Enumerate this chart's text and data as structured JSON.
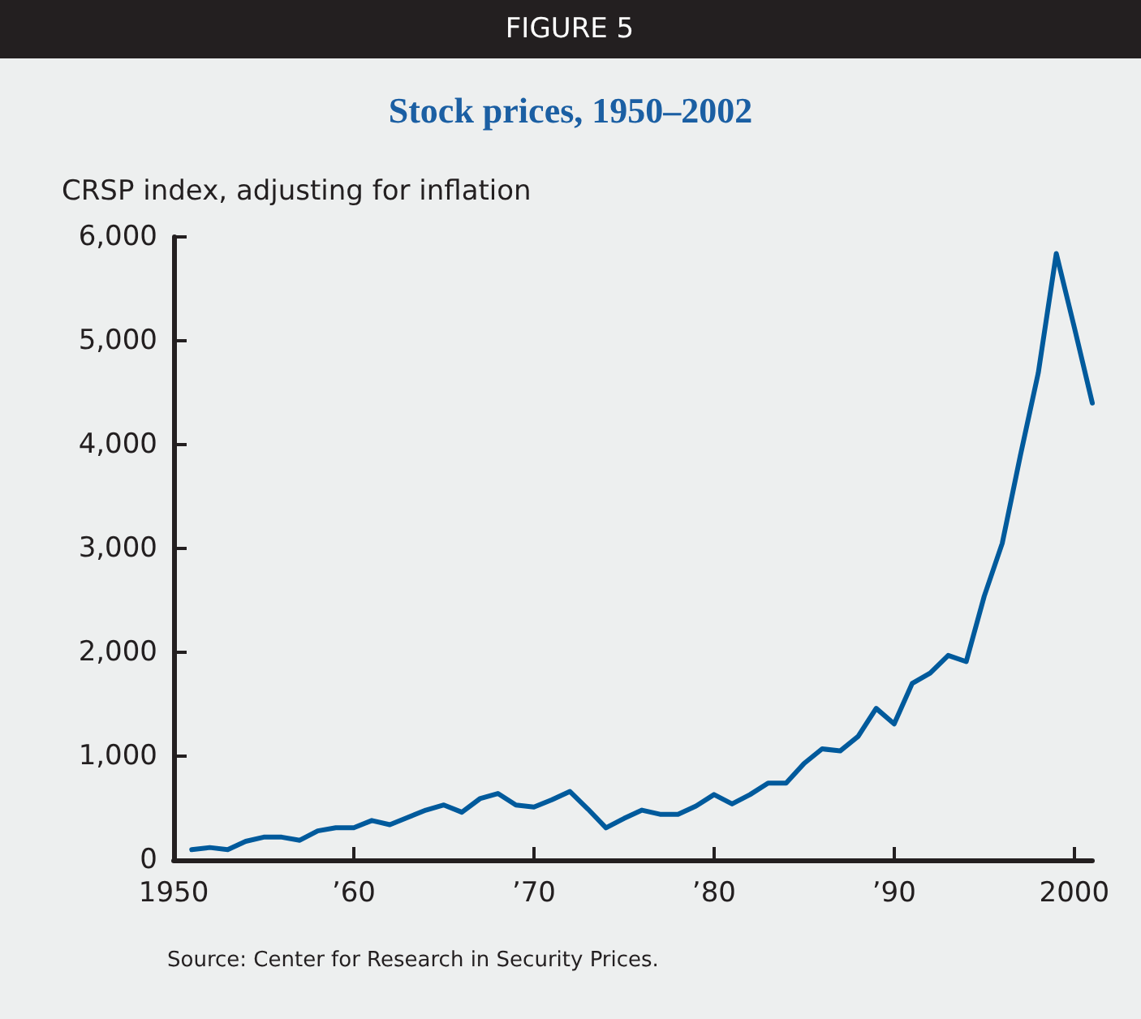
{
  "chart_data": {
    "type": "line",
    "title": "Stock prices, 1950–2002",
    "ylabel": "CRSP index, adjusting for inflation",
    "annotations": [
      "FIGURE 5",
      "Source: Center for Research in Security Prices."
    ],
    "x": [
      1951,
      1952,
      1953,
      1954,
      1955,
      1956,
      1957,
      1958,
      1959,
      1960,
      1961,
      1962,
      1963,
      1964,
      1965,
      1966,
      1967,
      1968,
      1969,
      1970,
      1971,
      1972,
      1973,
      1974,
      1975,
      1976,
      1977,
      1978,
      1979,
      1980,
      1981,
      1982,
      1983,
      1984,
      1985,
      1986,
      1987,
      1988,
      1989,
      1990,
      1991,
      1992,
      1993,
      1994,
      1995,
      1996,
      1997,
      1998,
      1999,
      2000,
      2001
    ],
    "series": [
      {
        "color": "#005a9c",
        "values": [
          100,
          120,
          100,
          180,
          220,
          220,
          190,
          280,
          310,
          310,
          380,
          340,
          410,
          480,
          530,
          460,
          590,
          640,
          530,
          510,
          580,
          660,
          490,
          310,
          400,
          480,
          440,
          440,
          520,
          630,
          540,
          630,
          740,
          740,
          930,
          1070,
          1050,
          1190,
          1460,
          1310,
          1700,
          1800,
          1970,
          1910,
          2540,
          3050,
          3890,
          4690,
          5840,
          5130,
          4400
        ]
      }
    ],
    "xlim": [
      1950,
      2001
    ],
    "xticks": [
      1950,
      {
        "value": 1960,
        "label": "’60"
      },
      {
        "value": 1970,
        "label": "’70"
      },
      {
        "value": 1980,
        "label": "’80"
      },
      {
        "value": 1990,
        "label": "’90"
      },
      2000
    ],
    "ylim": [
      0,
      6000
    ],
    "yticks": [
      0,
      {
        "value": 1000,
        "label": "1,000"
      },
      {
        "value": 2000,
        "label": "2,000"
      },
      {
        "value": 3000,
        "label": "3,000"
      },
      {
        "value": 4000,
        "label": "4,000"
      },
      {
        "value": 5000,
        "label": "5,000"
      },
      {
        "value": 6000,
        "label": "6,000"
      }
    ],
    "grid": false,
    "marker": "none",
    "line_style": "solid"
  }
}
